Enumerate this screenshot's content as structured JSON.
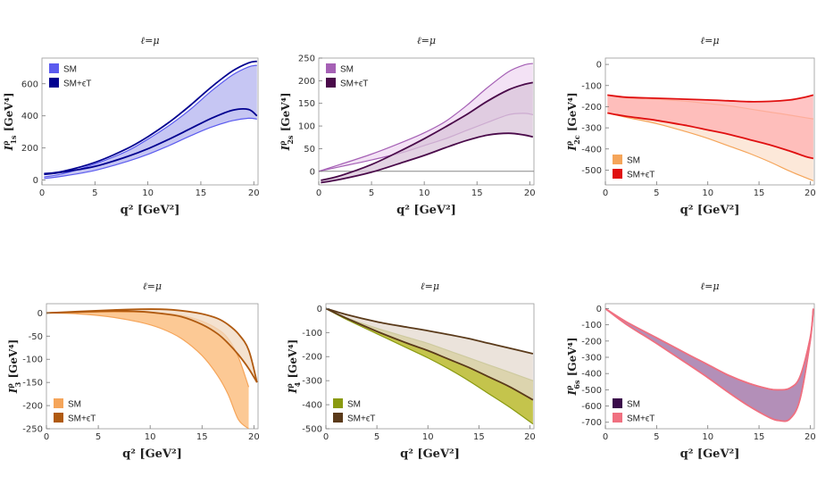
{
  "figure": {
    "background": "#ffffff"
  },
  "chart_data": [
    {
      "type": "area",
      "title": "ℓ=μ",
      "xlabel": "q²   [GeV²]",
      "ylabel": "I^ρ_1s  [GeV⁴]",
      "xlim": [
        0,
        20.4
      ],
      "ylim": [
        -30,
        760
      ],
      "xticks": [
        0,
        5,
        10,
        15,
        20
      ],
      "yticks": [
        0,
        200,
        400,
        600
      ],
      "legend_position": "top-left",
      "bands": [
        {
          "name": "SM",
          "color": "#5b5bef",
          "fill": "#b3b3ef",
          "x": [
            0.2,
            2,
            5,
            8,
            10,
            12,
            14,
            16,
            18,
            19.5,
            20.3
          ],
          "lower": [
            10,
            25,
            60,
            115,
            160,
            215,
            275,
            330,
            370,
            385,
            380
          ],
          "upper": [
            20,
            40,
            100,
            180,
            255,
            340,
            440,
            555,
            655,
            705,
            715
          ]
        },
        {
          "name": "SM+ϵT",
          "color": "#000090",
          "fill": null,
          "x": [
            0.2,
            2,
            5,
            8,
            10,
            12,
            14,
            16,
            18,
            19.5,
            20.3
          ],
          "lower": [
            35,
            50,
            85,
            145,
            195,
            255,
            320,
            385,
            435,
            440,
            400
          ],
          "upper": [
            40,
            55,
            110,
            195,
            270,
            360,
            465,
            580,
            680,
            730,
            740
          ]
        }
      ]
    },
    {
      "type": "area",
      "title": "ℓ=μ",
      "xlabel": "q²   [GeV²]",
      "ylabel": "I^ρ_2s  [GeV⁴]",
      "xlim": [
        0,
        20.4
      ],
      "ylim": [
        -30,
        250
      ],
      "xticks": [
        0,
        5,
        10,
        15,
        20
      ],
      "yticks": [
        0,
        50,
        100,
        150,
        200,
        250
      ],
      "legend_position": "top-left",
      "bands": [
        {
          "name": "SM",
          "color": "#a560b5",
          "fill": "#efd8f2",
          "x": [
            0,
            2,
            5,
            8,
            10,
            12,
            14,
            16,
            18,
            19.5,
            20.3
          ],
          "lower": [
            0,
            10,
            25,
            42,
            57,
            72,
            90,
            108,
            125,
            128,
            125
          ],
          "upper": [
            0,
            15,
            38,
            65,
            85,
            110,
            145,
            185,
            220,
            235,
            238
          ]
        },
        {
          "name": "SM+ϵT",
          "color": "#4a0a4a",
          "fill": "#d9c4d9",
          "x": [
            0.2,
            2,
            5,
            8,
            10,
            12,
            14,
            16,
            18,
            19.5,
            20.3
          ],
          "lower": [
            -25,
            -18,
            -2,
            20,
            35,
            52,
            68,
            80,
            84,
            80,
            76
          ],
          "upper": [
            -20,
            -10,
            15,
            48,
            72,
            98,
            125,
            155,
            180,
            192,
            196
          ]
        }
      ],
      "reference_line": {
        "y": 0,
        "color": "#888888"
      }
    },
    {
      "type": "area",
      "title": "ℓ=μ",
      "xlabel": "q²   [GeV²]",
      "ylabel": "I^ρ_2c  [GeV⁴]",
      "xlim": [
        0,
        20.4
      ],
      "ylim": [
        -570,
        30
      ],
      "xticks": [
        0,
        5,
        10,
        15,
        20
      ],
      "yticks": [
        0,
        -100,
        -200,
        -300,
        -400,
        -500
      ],
      "legend_position": "bottom-left",
      "bands": [
        {
          "name": "SM",
          "color": "#f5a55a",
          "fill": "#fbe0cc",
          "x": [
            0.2,
            2,
            5,
            8,
            10,
            12,
            14,
            16,
            18,
            19.5,
            20.3
          ],
          "lower": [
            -230,
            -250,
            -280,
            -320,
            -350,
            -385,
            -420,
            -460,
            -505,
            -535,
            -550
          ],
          "upper": [
            -145,
            -158,
            -165,
            -175,
            -185,
            -195,
            -210,
            -225,
            -240,
            -252,
            -258
          ]
        },
        {
          "name": "SM+ϵT",
          "color": "#e01010",
          "fill": "#ffb0b0",
          "x": [
            0.2,
            2,
            5,
            8,
            10,
            12,
            14,
            16,
            18,
            19.5,
            20.3
          ],
          "lower": [
            -230,
            -245,
            -265,
            -290,
            -310,
            -330,
            -355,
            -380,
            -410,
            -435,
            -445
          ],
          "upper": [
            -145,
            -155,
            -160,
            -165,
            -168,
            -172,
            -176,
            -175,
            -168,
            -155,
            -145
          ]
        }
      ]
    },
    {
      "type": "area",
      "title": "ℓ=μ",
      "xlabel": "q²   [GeV²]",
      "ylabel": "I^ρ_3  [GeV⁴]",
      "xlim": [
        0,
        20.4
      ],
      "ylim": [
        -250,
        20
      ],
      "xticks": [
        0,
        5,
        10,
        15,
        20
      ],
      "yticks": [
        0,
        -50,
        -100,
        -150,
        -200,
        -250
      ],
      "legend_position": "bottom-left",
      "bands": [
        {
          "name": "SM",
          "color": "#f5a55a",
          "fill": "#fbb772",
          "x": [
            0,
            3,
            6,
            9,
            11,
            13,
            15,
            16.5,
            17.5,
            18.5,
            19.5
          ],
          "lower": [
            0,
            -2,
            -8,
            -20,
            -33,
            -55,
            -92,
            -135,
            -175,
            -230,
            -250
          ],
          "upper": [
            0,
            1,
            2,
            2,
            0,
            -5,
            -18,
            -35,
            -55,
            -95,
            -160
          ]
        },
        {
          "name": "SM+ϵT",
          "color": "#b05a10",
          "fill": "#f0d8c0",
          "x": [
            0,
            3,
            6,
            9,
            11,
            13,
            15,
            16.5,
            17.5,
            18.5,
            19.5,
            20.3
          ],
          "lower": [
            0,
            2,
            4,
            3,
            -1,
            -8,
            -25,
            -45,
            -65,
            -90,
            -120,
            -150
          ],
          "upper": [
            0,
            3,
            6,
            8,
            8,
            5,
            -2,
            -12,
            -25,
            -45,
            -80,
            -150
          ]
        }
      ]
    },
    {
      "type": "area",
      "title": "ℓ=μ",
      "xlabel": "q²   [GeV²]",
      "ylabel": "I^ρ_4  [GeV⁴]",
      "xlim": [
        0,
        20.4
      ],
      "ylim": [
        -500,
        20
      ],
      "xticks": [
        0,
        5,
        10,
        15,
        20
      ],
      "yticks": [
        0,
        -100,
        -200,
        -300,
        -400,
        -500
      ],
      "legend_position": "bottom-left",
      "bands": [
        {
          "name": "SM",
          "color": "#8a9a10",
          "fill": "#b0b010",
          "x": [
            0,
            2,
            5,
            8,
            10,
            12,
            14,
            16,
            18,
            20.3
          ],
          "lower": [
            0,
            -45,
            -105,
            -165,
            -205,
            -250,
            -300,
            -355,
            -410,
            -480
          ],
          "upper": [
            0,
            -38,
            -82,
            -120,
            -145,
            -175,
            -205,
            -235,
            -265,
            -300
          ]
        },
        {
          "name": "SM+ϵT",
          "color": "#5a3a1a",
          "fill": "#e4d9cf",
          "x": [
            0,
            2,
            5,
            8,
            10,
            12,
            14,
            16,
            18,
            20.3
          ],
          "lower": [
            0,
            -40,
            -95,
            -145,
            -175,
            -210,
            -245,
            -285,
            -325,
            -380
          ],
          "upper": [
            0,
            -25,
            -55,
            -78,
            -92,
            -108,
            -125,
            -145,
            -165,
            -188
          ]
        }
      ]
    },
    {
      "type": "area",
      "title": "ℓ=μ",
      "xlabel": "q²   [GeV²]",
      "ylabel": "I^ρ_6s  [GeV⁴]",
      "xlim": [
        0,
        20.4
      ],
      "ylim": [
        -740,
        30
      ],
      "xticks": [
        0,
        5,
        10,
        15,
        20
      ],
      "yticks": [
        0,
        -100,
        -200,
        -300,
        -400,
        -500,
        -600,
        -700
      ],
      "legend_position": "bottom-left",
      "bands": [
        {
          "name": "SM",
          "color": "#3a0a4a",
          "fill": "#9a6aa0",
          "x": [
            0,
            2,
            5,
            8,
            10,
            12,
            14,
            16,
            17,
            18,
            19,
            20,
            20.3
          ],
          "lower": [
            0,
            -95,
            -215,
            -340,
            -425,
            -515,
            -600,
            -670,
            -690,
            -680,
            -560,
            -200,
            0
          ],
          "upper": [
            0,
            -80,
            -180,
            -280,
            -345,
            -410,
            -460,
            -495,
            -500,
            -490,
            -420,
            -180,
            0
          ]
        },
        {
          "name": "SM+ϵT",
          "color": "#f07080",
          "fill": null,
          "x": [
            0,
            2,
            5,
            8,
            10,
            12,
            14,
            16,
            17,
            18,
            19,
            20,
            20.3
          ],
          "lower": [
            0,
            -95,
            -215,
            -340,
            -425,
            -515,
            -600,
            -670,
            -690,
            -680,
            -560,
            -200,
            0
          ],
          "upper": [
            0,
            -80,
            -180,
            -280,
            -345,
            -410,
            -460,
            -495,
            -500,
            -490,
            -420,
            -180,
            0
          ]
        }
      ]
    }
  ]
}
